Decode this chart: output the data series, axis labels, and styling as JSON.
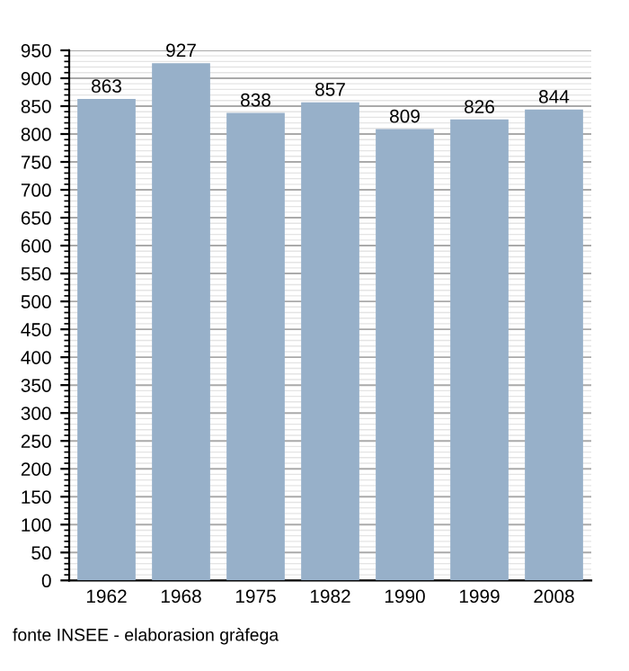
{
  "chart_data": {
    "type": "bar",
    "categories": [
      "1962",
      "1968",
      "1975",
      "1982",
      "1990",
      "1999",
      "2008"
    ],
    "values": [
      863,
      927,
      838,
      857,
      809,
      826,
      844
    ],
    "color": "#97b0c9",
    "ylim": [
      0,
      950
    ],
    "yticks": [
      0,
      50,
      100,
      150,
      200,
      250,
      300,
      350,
      400,
      450,
      500,
      550,
      600,
      650,
      700,
      750,
      800,
      850,
      900,
      950
    ],
    "grid": "y",
    "data_labels": true,
    "annotations": [
      "fonte INSEE - elaborasion gràfega"
    ]
  }
}
